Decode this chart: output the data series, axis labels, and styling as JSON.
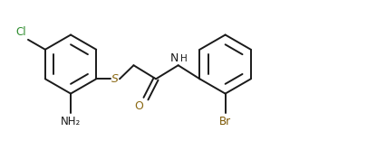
{
  "background_color": "#ffffff",
  "line_color": "#1a1a1a",
  "cl_color": "#2d8c2d",
  "br_color": "#7a5500",
  "o_color": "#8b6914",
  "n_color": "#1a1a1a",
  "s_color": "#8b6914",
  "figsize": [
    4.06,
    1.56
  ],
  "dpi": 100,
  "xlim": [
    0,
    10.2
  ],
  "ylim": [
    0,
    3.85
  ]
}
